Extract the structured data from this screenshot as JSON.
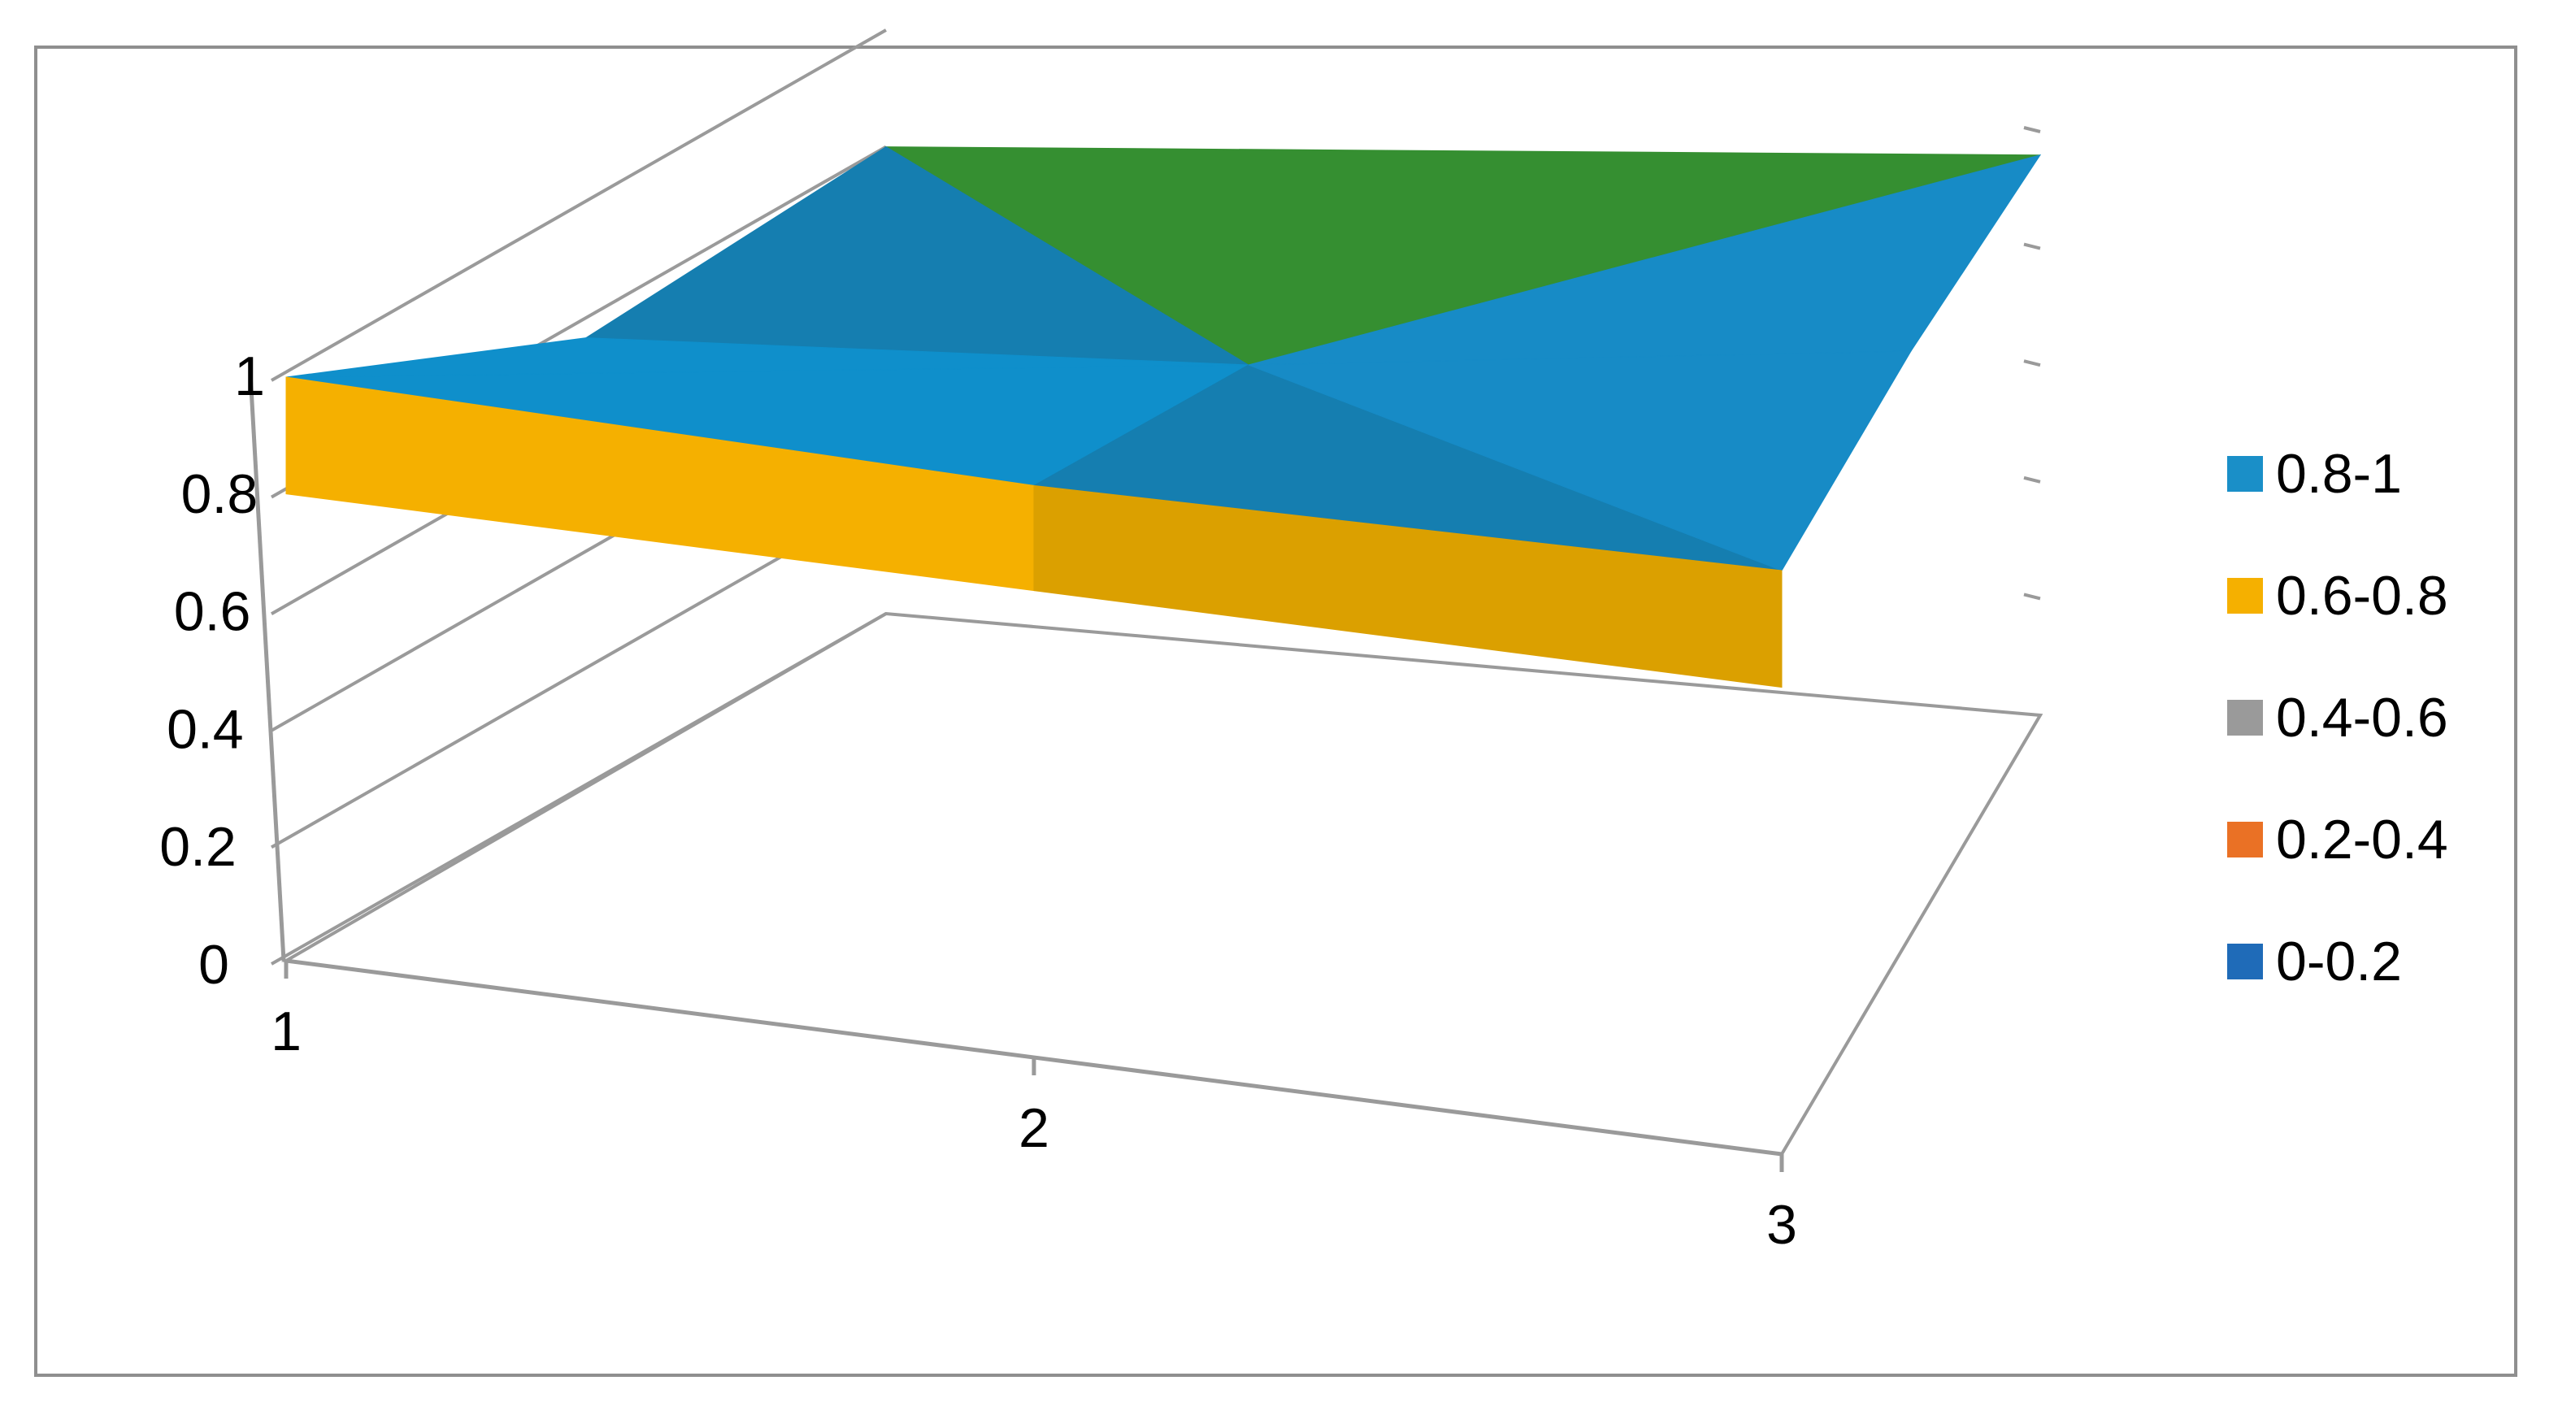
{
  "chart_data": {
    "type": "surface",
    "title": "",
    "xlabel": "",
    "ylabel": "",
    "zlabel": "",
    "x_categories": [
      "1",
      "2",
      "3"
    ],
    "depth_series_count": 3,
    "zlim": [
      0,
      1
    ],
    "z_ticks": [
      "0",
      "0.2",
      "0.4",
      "0.6",
      "0.8",
      "1"
    ],
    "values": [
      [
        1.0,
        0.98,
        1.0
      ],
      [
        0.77,
        0.85,
        1.0
      ],
      [
        0.8,
        0.84,
        0.96
      ]
    ],
    "grid": true,
    "legend_position": "right",
    "bands": [
      {
        "label": "0.8-1",
        "color": "#1a8fc8"
      },
      {
        "label": "0.6-0.8",
        "color": "#f5b000"
      },
      {
        "label": "0.4-0.6",
        "color": "#9a9a9a"
      },
      {
        "label": "0.2-0.4",
        "color": "#ea7125"
      },
      {
        "label": "0-0.2",
        "color": "#1f6bb8"
      }
    ],
    "face_colors": {
      "blue_front": "#0f8fcb",
      "blue_dark": "#157eb0",
      "blue_mid": "#178bc6",
      "green_top": "#358f31",
      "orange_front": "#f5b000",
      "orange_dark": "#dba000"
    }
  }
}
